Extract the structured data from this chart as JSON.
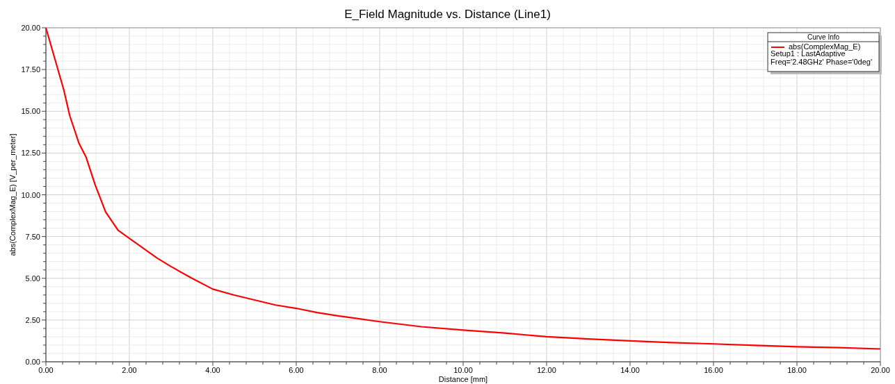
{
  "chart_data": {
    "type": "line",
    "title": "E_Field Magnitude vs. Distance (Line1)",
    "xlabel": "Distance [mm]",
    "ylabel": "abs(ComplexMag_E) [V_per_meter]",
    "legend_title": "Curve Info",
    "annotations": [
      "Setup1 : LastAdaptive",
      "Freq='2.48GHz' Phase='0deg'"
    ],
    "x": [
      0,
      0.43,
      0.57,
      0.79,
      0.96,
      1.18,
      1.43,
      1.73,
      2.12,
      2.67,
      3,
      3.5,
      4,
      4.5,
      5,
      5.5,
      6,
      6.5,
      7,
      8,
      9,
      10,
      11,
      12,
      13,
      14,
      15,
      16,
      17,
      18,
      19,
      20
    ],
    "series": [
      {
        "name": "abs(ComplexMag_E)",
        "color": "#ff0000",
        "values": [
          20,
          16.27,
          14.75,
          13.1,
          12.27,
          10.6,
          8.98,
          7.87,
          7.18,
          6.2,
          5.7,
          5,
          4.35,
          4,
          3.7,
          3.4,
          3.2,
          2.95,
          2.75,
          2.4,
          2.1,
          1.9,
          1.72,
          1.5,
          1.37,
          1.25,
          1.15,
          1.07,
          0.98,
          0.9,
          0.85,
          0.77
        ]
      }
    ],
    "xlim": [
      0,
      20
    ],
    "ylim": [
      0,
      20
    ],
    "xticks": [
      {
        "value": 0,
        "label": "0.00"
      },
      {
        "value": 0.4,
        "label": null
      },
      {
        "value": 0.8,
        "label": null
      },
      {
        "value": 1.2,
        "label": null
      },
      {
        "value": 1.6,
        "label": null
      },
      {
        "value": 2,
        "label": "2.00"
      },
      {
        "value": 2.4,
        "label": null
      },
      {
        "value": 2.8,
        "label": null
      },
      {
        "value": 3.2,
        "label": null
      },
      {
        "value": 3.6,
        "label": null
      },
      {
        "value": 4,
        "label": "4.00"
      },
      {
        "value": 4.4,
        "label": null
      },
      {
        "value": 4.8,
        "label": null
      },
      {
        "value": 5.2,
        "label": null
      },
      {
        "value": 5.6,
        "label": null
      },
      {
        "value": 6,
        "label": "6.00"
      },
      {
        "value": 6.4,
        "label": null
      },
      {
        "value": 6.8,
        "label": null
      },
      {
        "value": 7.2,
        "label": null
      },
      {
        "value": 7.6,
        "label": null
      },
      {
        "value": 8,
        "label": "8.00"
      },
      {
        "value": 8.4,
        "label": null
      },
      {
        "value": 8.8,
        "label": null
      },
      {
        "value": 9.2,
        "label": null
      },
      {
        "value": 9.6,
        "label": null
      },
      {
        "value": 10,
        "label": "10.00"
      },
      {
        "value": 10.4,
        "label": null
      },
      {
        "value": 10.8,
        "label": null
      },
      {
        "value": 11.2,
        "label": null
      },
      {
        "value": 11.6,
        "label": null
      },
      {
        "value": 12,
        "label": "12.00"
      },
      {
        "value": 12.4,
        "label": null
      },
      {
        "value": 12.8,
        "label": null
      },
      {
        "value": 13.2,
        "label": null
      },
      {
        "value": 13.6,
        "label": null
      },
      {
        "value": 14,
        "label": "14.00"
      },
      {
        "value": 14.4,
        "label": null
      },
      {
        "value": 14.8,
        "label": null
      },
      {
        "value": 15.2,
        "label": null
      },
      {
        "value": 15.6,
        "label": null
      },
      {
        "value": 16,
        "label": "16.00"
      },
      {
        "value": 16.4,
        "label": null
      },
      {
        "value": 16.8,
        "label": null
      },
      {
        "value": 17.2,
        "label": null
      },
      {
        "value": 17.6,
        "label": null
      },
      {
        "value": 18,
        "label": "18.00"
      },
      {
        "value": 18.4,
        "label": null
      },
      {
        "value": 18.8,
        "label": null
      },
      {
        "value": 19.2,
        "label": null
      },
      {
        "value": 19.6,
        "label": null
      },
      {
        "value": 20,
        "label": "20.00"
      }
    ],
    "yticks": [
      {
        "value": 0,
        "label": "0.00"
      },
      {
        "value": 0.5,
        "label": null
      },
      {
        "value": 1,
        "label": null
      },
      {
        "value": 1.5,
        "label": null
      },
      {
        "value": 2,
        "label": null
      },
      {
        "value": 2.5,
        "label": "2.50"
      },
      {
        "value": 3,
        "label": null
      },
      {
        "value": 3.5,
        "label": null
      },
      {
        "value": 4,
        "label": null
      },
      {
        "value": 4.5,
        "label": null
      },
      {
        "value": 5,
        "label": "5.00"
      },
      {
        "value": 5.5,
        "label": null
      },
      {
        "value": 6,
        "label": null
      },
      {
        "value": 6.5,
        "label": null
      },
      {
        "value": 7,
        "label": null
      },
      {
        "value": 7.5,
        "label": "7.50"
      },
      {
        "value": 8,
        "label": null
      },
      {
        "value": 8.5,
        "label": null
      },
      {
        "value": 9,
        "label": null
      },
      {
        "value": 9.5,
        "label": null
      },
      {
        "value": 10,
        "label": "10.00"
      },
      {
        "value": 10.5,
        "label": null
      },
      {
        "value": 11,
        "label": null
      },
      {
        "value": 11.5,
        "label": null
      },
      {
        "value": 12,
        "label": null
      },
      {
        "value": 12.5,
        "label": "12.50"
      },
      {
        "value": 13,
        "label": null
      },
      {
        "value": 13.5,
        "label": null
      },
      {
        "value": 14,
        "label": null
      },
      {
        "value": 14.5,
        "label": null
      },
      {
        "value": 15,
        "label": "15.00"
      },
      {
        "value": 15.5,
        "label": null
      },
      {
        "value": 16,
        "label": null
      },
      {
        "value": 16.5,
        "label": null
      },
      {
        "value": 17,
        "label": null
      },
      {
        "value": 17.5,
        "label": "17.50"
      },
      {
        "value": 18,
        "label": null
      },
      {
        "value": 18.5,
        "label": null
      },
      {
        "value": 19,
        "label": null
      },
      {
        "value": 19.5,
        "label": null
      },
      {
        "value": 20,
        "label": "20.00"
      }
    ],
    "grid": true,
    "legend": "top right",
    "marker": "none",
    "line_style": "solid"
  }
}
